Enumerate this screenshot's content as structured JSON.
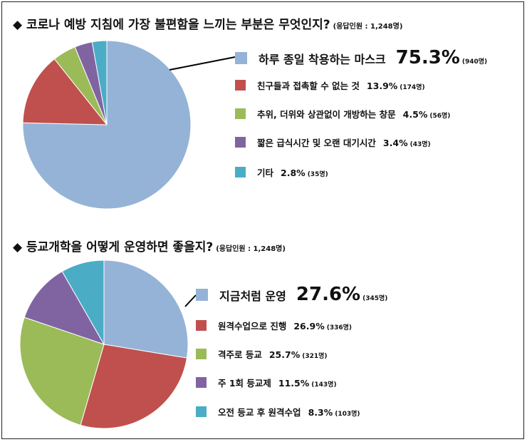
{
  "charts": [
    {
      "title": "코로나 예방 지침에 가장 불편함을 느끼는 부분은 무엇인지?",
      "note": "(응답인원 : 1,248명)"
    },
    {
      "title": "등교개학을 어떻게 운영하면 좋을지?",
      "note": "(응답인원 : 1,248명)"
    }
  ],
  "chart_data": [
    {
      "type": "pie",
      "title": "코로나 예방 지침에 가장 불편함을 느끼는 부분은 무엇인지?",
      "respondents": "(응답인원 : 1,248명)",
      "slices": [
        {
          "label": "하루 종일 착용하는 마스크",
          "percent": 75.3,
          "pct_text": "75.3%",
          "count": "(940명)",
          "color": "#95B3D7"
        },
        {
          "label": "친구들과 접촉할 수 없는 것",
          "percent": 13.9,
          "pct_text": "13.9%",
          "count": "(174명)",
          "color": "#C0504D"
        },
        {
          "label": "추위, 더위와 상관없이 개방하는 창문",
          "percent": 4.5,
          "pct_text": "4.5%",
          "count": "(56명)",
          "color": "#9BBB59"
        },
        {
          "label": "짧은 급식시간 및 오랜 대기시간",
          "percent": 3.4,
          "pct_text": "3.4%",
          "count": "(43명)",
          "color": "#8064A2"
        },
        {
          "label": "기타",
          "percent": 2.8,
          "pct_text": "2.8%",
          "count": "(35명)",
          "color": "#4BACC6"
        }
      ]
    },
    {
      "type": "pie",
      "title": "등교개학을 어떻게 운영하면 좋을지?",
      "respondents": "(응답인원 : 1,248명)",
      "slices": [
        {
          "label": "지금처럼 운영",
          "percent": 27.6,
          "pct_text": "27.6%",
          "count": "(345명)",
          "color": "#95B3D7"
        },
        {
          "label": "원격수업으로 진행",
          "percent": 26.9,
          "pct_text": "26.9%",
          "count": "(336명)",
          "color": "#C0504D"
        },
        {
          "label": "격주로 등교",
          "percent": 25.7,
          "pct_text": "25.7%",
          "count": "(321명)",
          "color": "#9BBB59"
        },
        {
          "label": "주 1회 등교제",
          "percent": 11.5,
          "pct_text": "11.5%",
          "count": "(143명)",
          "color": "#8064A2"
        },
        {
          "label": "오전 등교 후 원격수업",
          "percent": 8.3,
          "pct_text": "8.3%",
          "count": "(103명)",
          "color": "#4BACC6"
        }
      ]
    }
  ]
}
